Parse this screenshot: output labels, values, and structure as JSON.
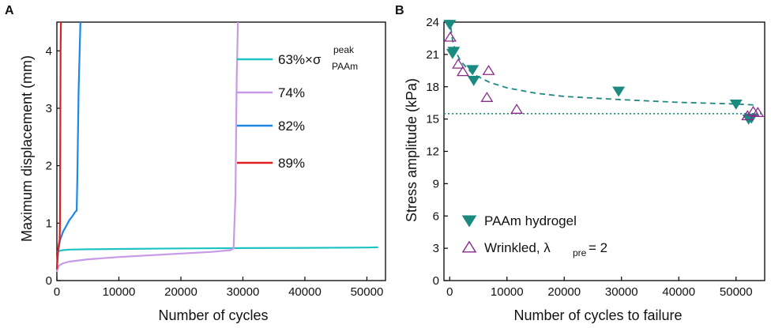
{
  "chart_data": [
    {
      "panel": "A",
      "type": "line",
      "xlabel": "Number of cycles",
      "ylabel": "Maximum displacement (mm)",
      "xlim": [
        0,
        53000
      ],
      "ylim": [
        0,
        4.5
      ],
      "xticks": [
        0,
        10000,
        20000,
        30000,
        40000,
        50000
      ],
      "yticks": [
        0,
        1,
        2,
        3,
        4
      ],
      "legend": {
        "position": "right"
      },
      "series": [
        {
          "name": "63%×σ",
          "sup": "peak",
          "sub": "PAAm",
          "color": "#20c3c3",
          "x": [
            0,
            500,
            1000,
            2000,
            5000,
            10000,
            20000,
            30000,
            40000,
            50000,
            51800
          ],
          "y": [
            0.5,
            0.52,
            0.53,
            0.54,
            0.545,
            0.55,
            0.56,
            0.565,
            0.57,
            0.575,
            0.58
          ]
        },
        {
          "name": "74%",
          "color": "#c79be8",
          "x": [
            0,
            300,
            1000,
            2000,
            5000,
            10000,
            15000,
            20000,
            25000,
            28000,
            28500,
            28800,
            29000,
            29200
          ],
          "y": [
            0.15,
            0.26,
            0.3,
            0.33,
            0.37,
            0.41,
            0.44,
            0.47,
            0.5,
            0.53,
            0.56,
            1.5,
            3.5,
            4.5
          ]
        },
        {
          "name": "82%",
          "color": "#1e88e5",
          "x": [
            0,
            200,
            500,
            1000,
            1500,
            2000,
            2500,
            3000,
            3200,
            3300,
            3500,
            3800
          ],
          "y": [
            0.2,
            0.5,
            0.7,
            0.85,
            0.95,
            1.05,
            1.12,
            1.2,
            1.22,
            1.8,
            3.3,
            4.5
          ]
        },
        {
          "name": "89%",
          "color": "#e02020",
          "x": [
            0,
            100,
            200,
            350,
            450,
            500,
            550,
            600,
            650
          ],
          "y": [
            0.2,
            0.4,
            0.55,
            0.65,
            0.7,
            1.0,
            2.5,
            4.0,
            4.5
          ]
        }
      ]
    },
    {
      "panel": "B",
      "type": "scatter",
      "xlabel": "Number of cycles to failure",
      "ylabel": "Stress amplitude (kPa)",
      "xlim": [
        -1000,
        55000
      ],
      "ylim": [
        0,
        24
      ],
      "xticks": [
        0,
        10000,
        20000,
        30000,
        40000,
        50000
      ],
      "yticks": [
        0,
        3,
        6,
        9,
        12,
        15,
        18,
        21,
        24
      ],
      "legend": {
        "position": "bottom-left"
      },
      "reference_line": {
        "y": 15.5,
        "style": "dotted",
        "color": "#1b8a80"
      },
      "fit_curve": {
        "style": "dashed",
        "color": "#1b8a80",
        "x": [
          200,
          500,
          1000,
          2000,
          4000,
          7000,
          10000,
          15000,
          20000,
          30000,
          40000,
          50000,
          53500
        ],
        "y": [
          23.5,
          22.3,
          21.3,
          20.3,
          19.2,
          18.4,
          17.9,
          17.4,
          17.1,
          16.8,
          16.55,
          16.4,
          16.3
        ]
      },
      "series": [
        {
          "name": "PAAm hydrogel",
          "marker": "filled-triangle-down",
          "color": "#1b8a80",
          "x": [
            0,
            500,
            700,
            4000,
            4200,
            29500,
            50000,
            52200,
            52700
          ],
          "y": [
            23.8,
            21.1,
            21.3,
            19.6,
            18.6,
            17.6,
            16.4,
            15.0,
            15.1
          ]
        },
        {
          "name": "Wrinkled, λ",
          "sub": "pre",
          "suffix": " = 2",
          "marker": "open-triangle-up",
          "color": "#8a2b8a",
          "x": [
            100,
            1500,
            2300,
            6500,
            6800,
            11700,
            52000,
            53000,
            53800
          ],
          "y": [
            22.6,
            20.1,
            19.4,
            17.0,
            19.5,
            15.9,
            15.3,
            15.7,
            15.6
          ]
        }
      ]
    }
  ]
}
